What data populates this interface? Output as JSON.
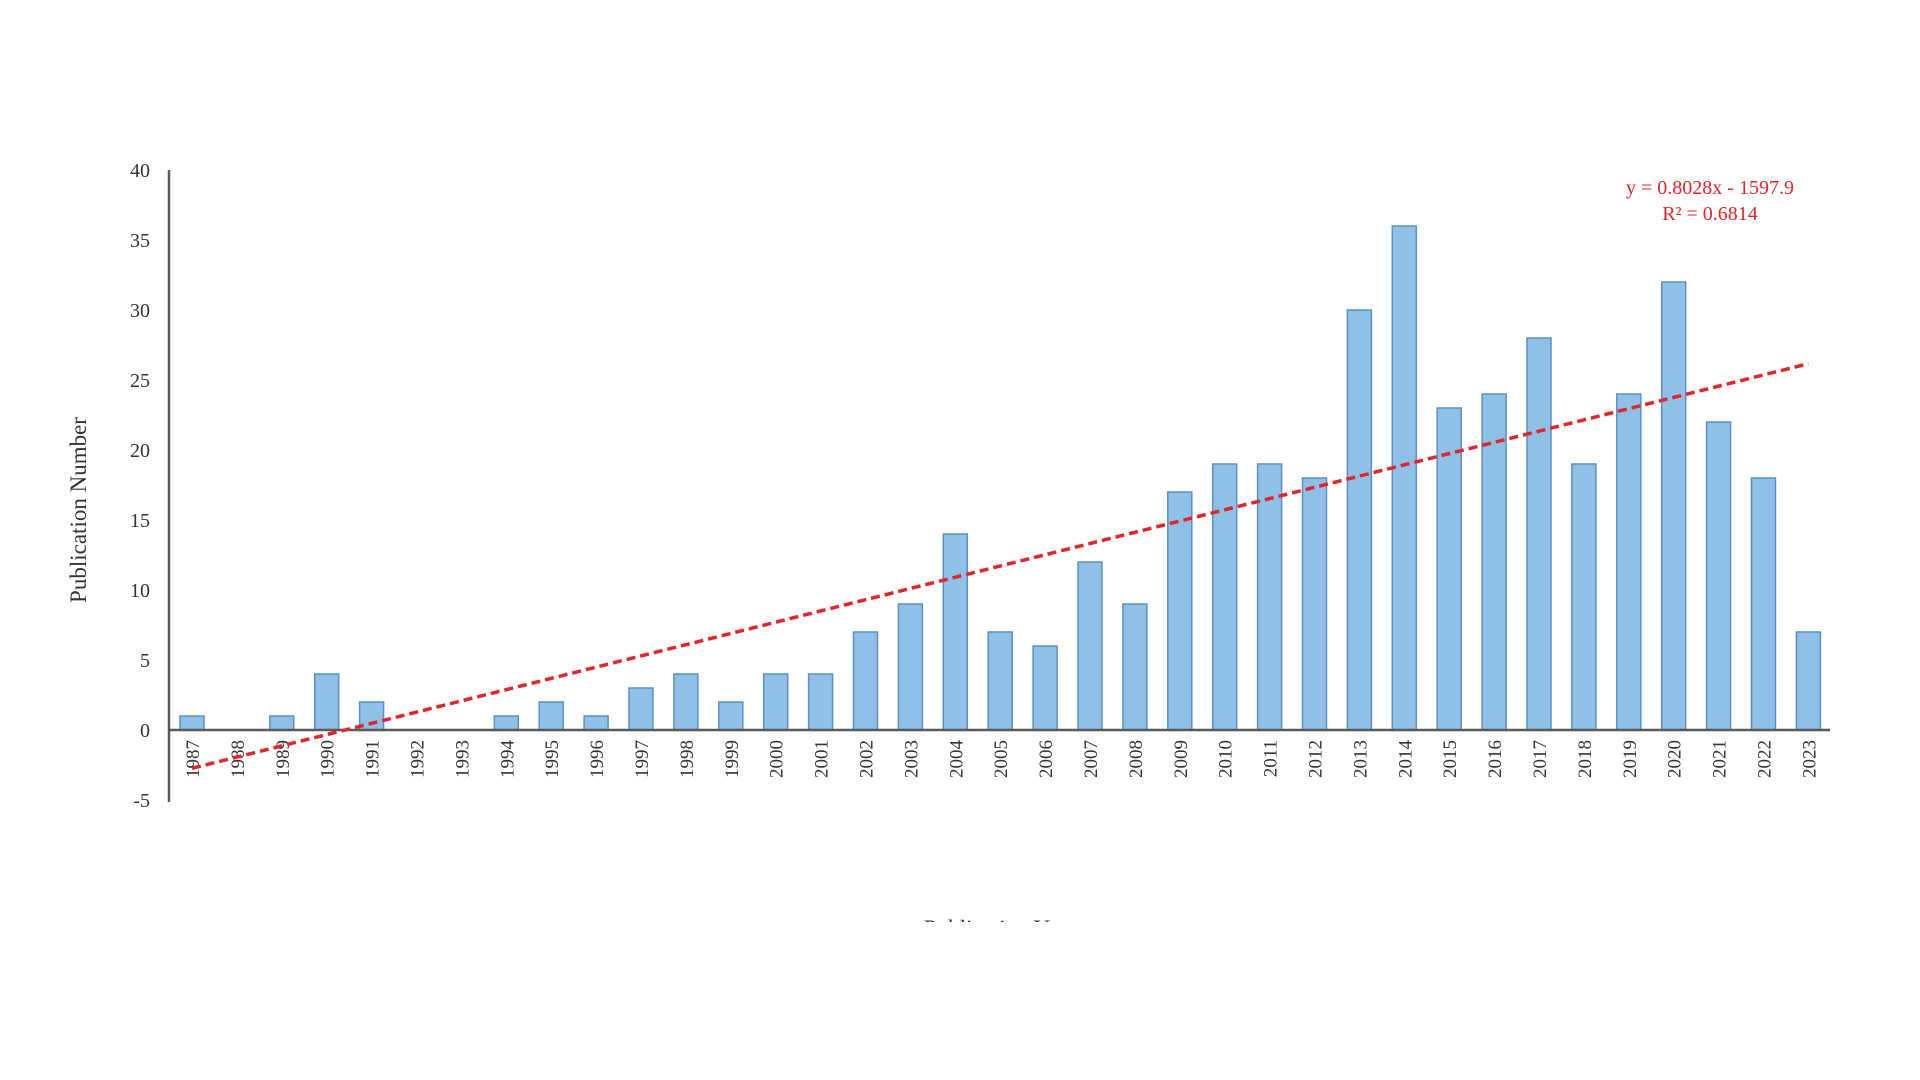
{
  "chart_data": {
    "type": "bar",
    "title": "",
    "xlabel": "Publication Year",
    "ylabel": "Publication Number",
    "ylim": [
      -5,
      40
    ],
    "yticks": [
      -5,
      0,
      5,
      10,
      15,
      20,
      25,
      30,
      35,
      40
    ],
    "grid": false,
    "categories": [
      "1987",
      "1988",
      "1989",
      "1990",
      "1991",
      "1992",
      "1993",
      "1994",
      "1995",
      "1996",
      "1997",
      "1998",
      "1999",
      "2000",
      "2001",
      "2002",
      "2003",
      "2004",
      "2005",
      "2006",
      "2007",
      "2008",
      "2009",
      "2010",
      "2011",
      "2012",
      "2013",
      "2014",
      "2015",
      "2016",
      "2017",
      "2018",
      "2019",
      "2020",
      "2021",
      "2022",
      "2023"
    ],
    "values": [
      1,
      0,
      1,
      4,
      2,
      0,
      0,
      1,
      2,
      1,
      3,
      4,
      2,
      4,
      4,
      7,
      9,
      14,
      7,
      6,
      12,
      9,
      17,
      19,
      19,
      18,
      30,
      36,
      23,
      24,
      28,
      19,
      24,
      32,
      22,
      18,
      7
    ],
    "trendline": {
      "type": "linear",
      "slope": 0.8028,
      "intercept": -1597.9,
      "equation_label": "y = 0.8028x - 1597.9",
      "r2_label": "R² = 0.6814"
    },
    "colors": {
      "bar_fill": "#8fc0e8",
      "bar_stroke": "#5b8fc4",
      "trendline": "#e0262b",
      "axis": "#595959",
      "text": "#333333"
    }
  }
}
